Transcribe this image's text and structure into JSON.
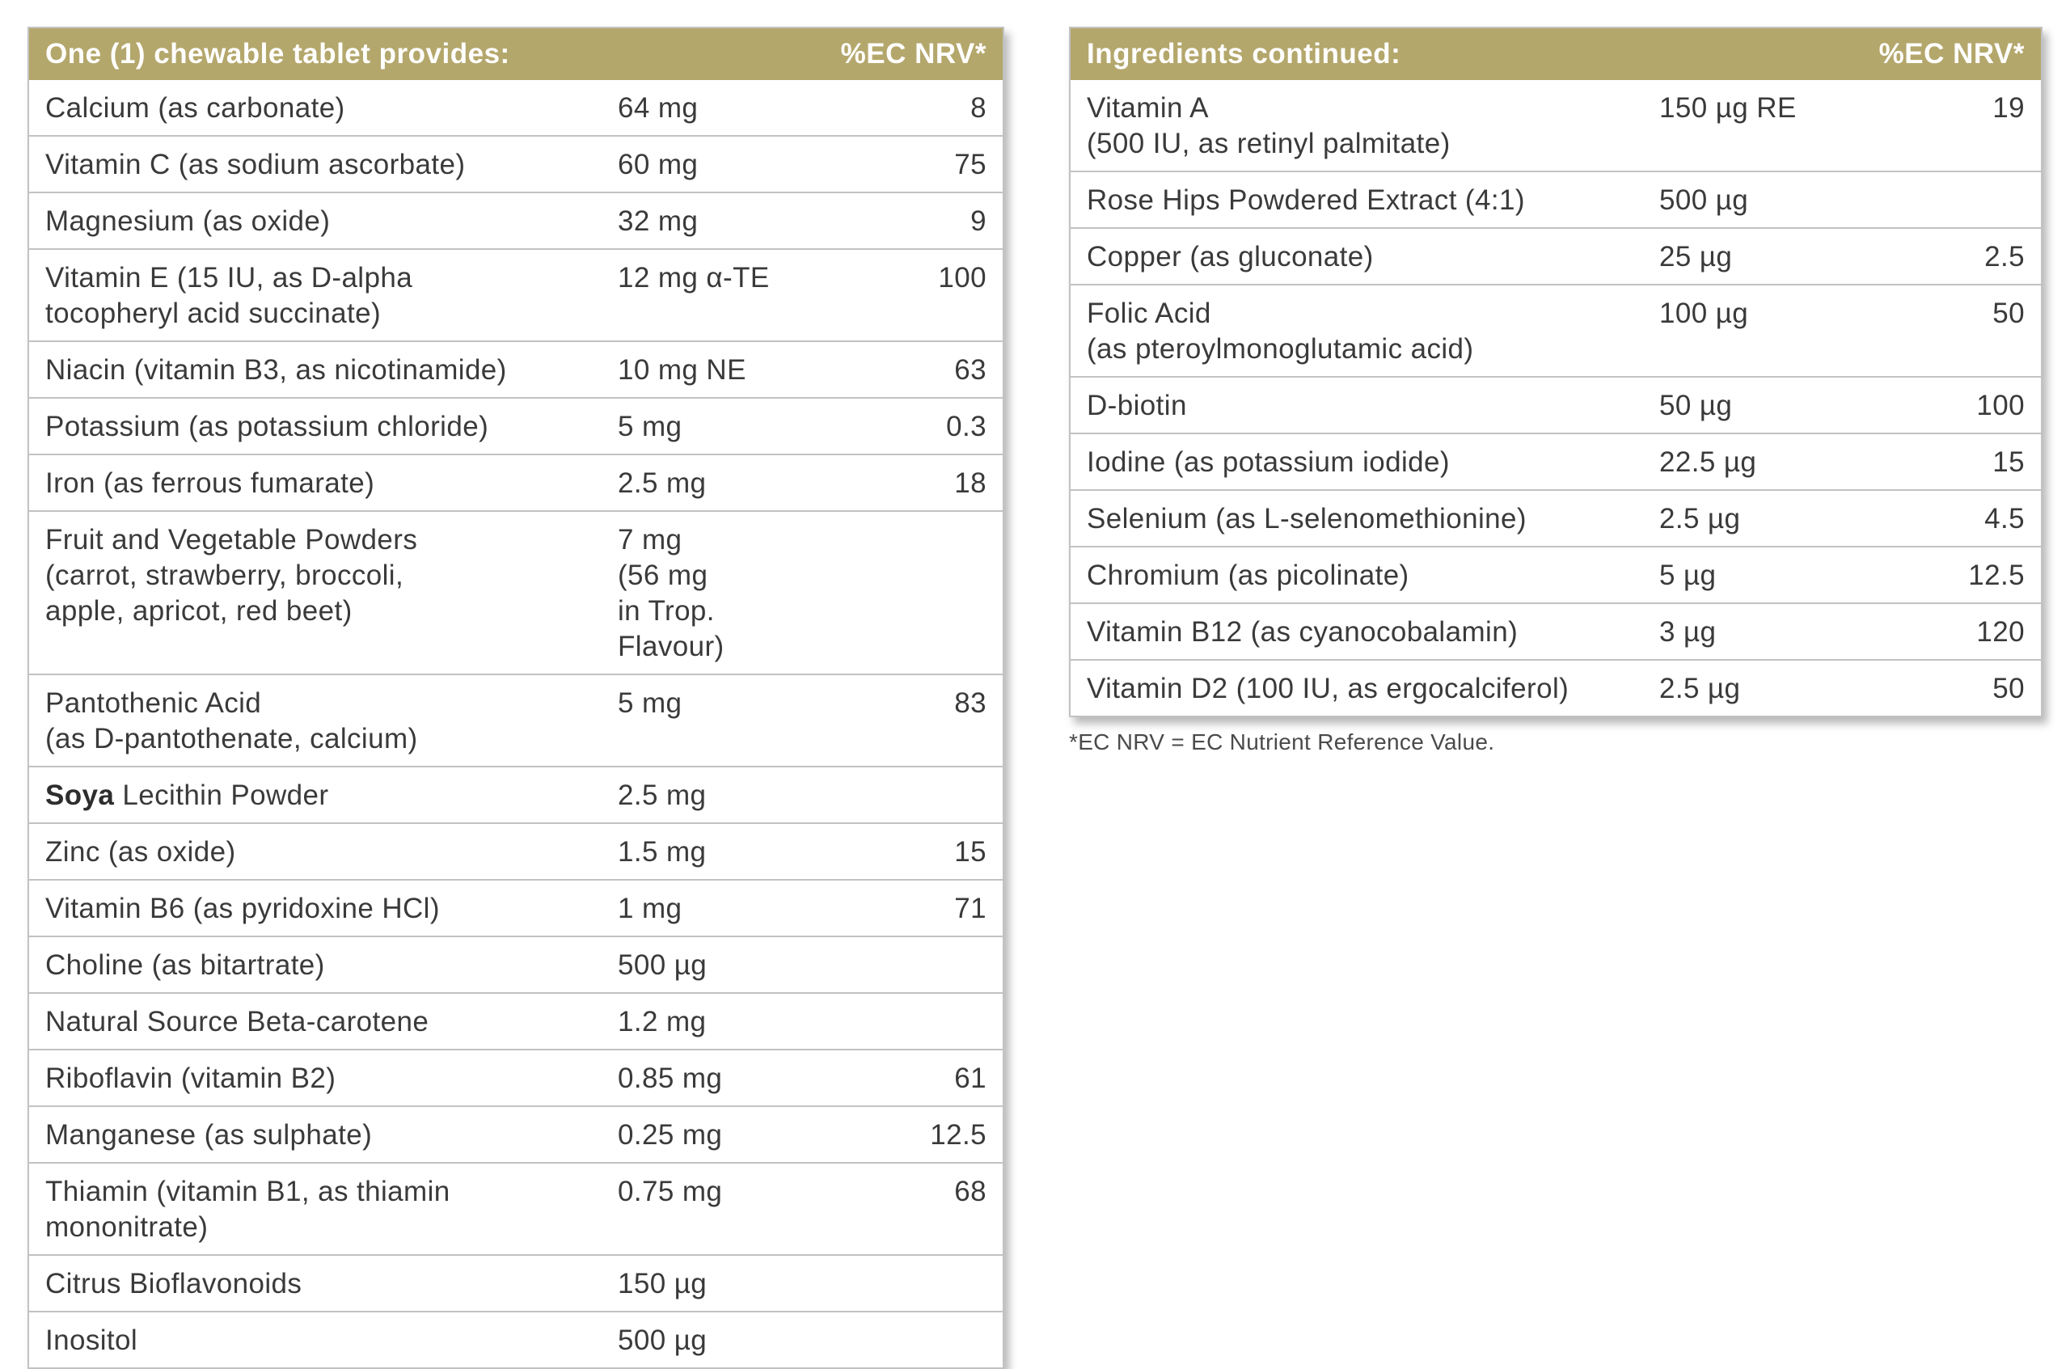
{
  "left_table": {
    "header": "One (1) chewable tablet provides:",
    "nrv_header": "%EC NRV*",
    "rows": [
      {
        "name": "Calcium (as carbonate)",
        "amount": "64 mg",
        "nrv": "8"
      },
      {
        "name": "Vitamin C (as sodium ascorbate)",
        "amount": "60 mg",
        "nrv": "75"
      },
      {
        "name": "Magnesium (as oxide)",
        "amount": "32 mg",
        "nrv": "9"
      },
      {
        "name": "Vitamin E (15 IU, as D-alpha\n  tocopheryl acid succinate)",
        "amount": "12 mg α-TE",
        "nrv": "100"
      },
      {
        "name": "Niacin (vitamin B3, as nicotinamide)",
        "amount": "10 mg NE",
        "nrv": "63"
      },
      {
        "name": "Potassium (as potassium chloride)",
        "amount": "5 mg",
        "nrv": "0.3"
      },
      {
        "name": "Iron (as ferrous fumarate)",
        "amount": "2.5 mg",
        "nrv": "18"
      },
      {
        "name": "Fruit and Vegetable Powders\n  (carrot, strawberry, broccoli,\n  apple, apricot, red beet)",
        "amount": "7 mg\n(56 mg\nin Trop.\nFlavour)",
        "nrv": ""
      },
      {
        "name": "Pantothenic Acid\n  (as D-pantothenate, calcium)",
        "amount": "5 mg",
        "nrv": "83"
      },
      {
        "name_bold": "Soya",
        "name": " Lecithin Powder",
        "amount": "2.5 mg",
        "nrv": ""
      },
      {
        "name": "Zinc (as oxide)",
        "amount": "1.5 mg",
        "nrv": "15"
      },
      {
        "name": "Vitamin B6 (as pyridoxine HCl)",
        "amount": "1 mg",
        "nrv": "71"
      },
      {
        "name": "Choline (as bitartrate)",
        "amount": "500 µg",
        "nrv": ""
      },
      {
        "name": "Natural Source Beta-carotene",
        "amount": "1.2 mg",
        "nrv": ""
      },
      {
        "name": "Riboflavin (vitamin B2)",
        "amount": "0.85 mg",
        "nrv": "61"
      },
      {
        "name": "Manganese (as sulphate)",
        "amount": "0.25 mg",
        "nrv": "12.5"
      },
      {
        "name": "Thiamin (vitamin B1, as thiamin\n  mononitrate)",
        "amount": "0.75 mg",
        "nrv": "68"
      },
      {
        "name": "Citrus Bioflavonoids",
        "amount": "150 µg",
        "nrv": ""
      },
      {
        "name": "Inositol",
        "amount": "500 µg",
        "nrv": ""
      }
    ]
  },
  "right_table": {
    "header": "Ingredients continued:",
    "nrv_header": "%EC NRV*",
    "rows": [
      {
        "name": "Vitamin A\n  (500 IU, as retinyl palmitate)",
        "amount": "150 µg RE",
        "nrv": "19"
      },
      {
        "name": "Rose Hips Powdered Extract (4:1)",
        "amount": "500 µg",
        "nrv": ""
      },
      {
        "name": "Copper (as gluconate)",
        "amount": "25 µg",
        "nrv": "2.5"
      },
      {
        "name": "Folic Acid\n  (as pteroylmonoglutamic acid)",
        "amount": "100 µg",
        "nrv": "50"
      },
      {
        "name": "D-biotin",
        "amount": "50 µg",
        "nrv": "100"
      },
      {
        "name": "Iodine (as potassium iodide)",
        "amount": "22.5 µg",
        "nrv": "15"
      },
      {
        "name": "Selenium (as L-selenomethionine)",
        "amount": "2.5 µg",
        "nrv": "4.5"
      },
      {
        "name": "Chromium (as picolinate)",
        "amount": "5 µg",
        "nrv": "12.5"
      },
      {
        "name": "Vitamin B12 (as cyanocobalamin)",
        "amount": "3 µg",
        "nrv": "120"
      },
      {
        "name": "Vitamin D2 (100 IU, as ergocalciferol)",
        "amount": "2.5 µg",
        "nrv": "50"
      }
    ]
  },
  "footnote": "*EC NRV = EC Nutrient Reference Value.",
  "colors": {
    "header_bg": "#b4a76c",
    "header_text": "#ffffff",
    "border": "#c2c2c2",
    "text": "#3a3a3a"
  }
}
